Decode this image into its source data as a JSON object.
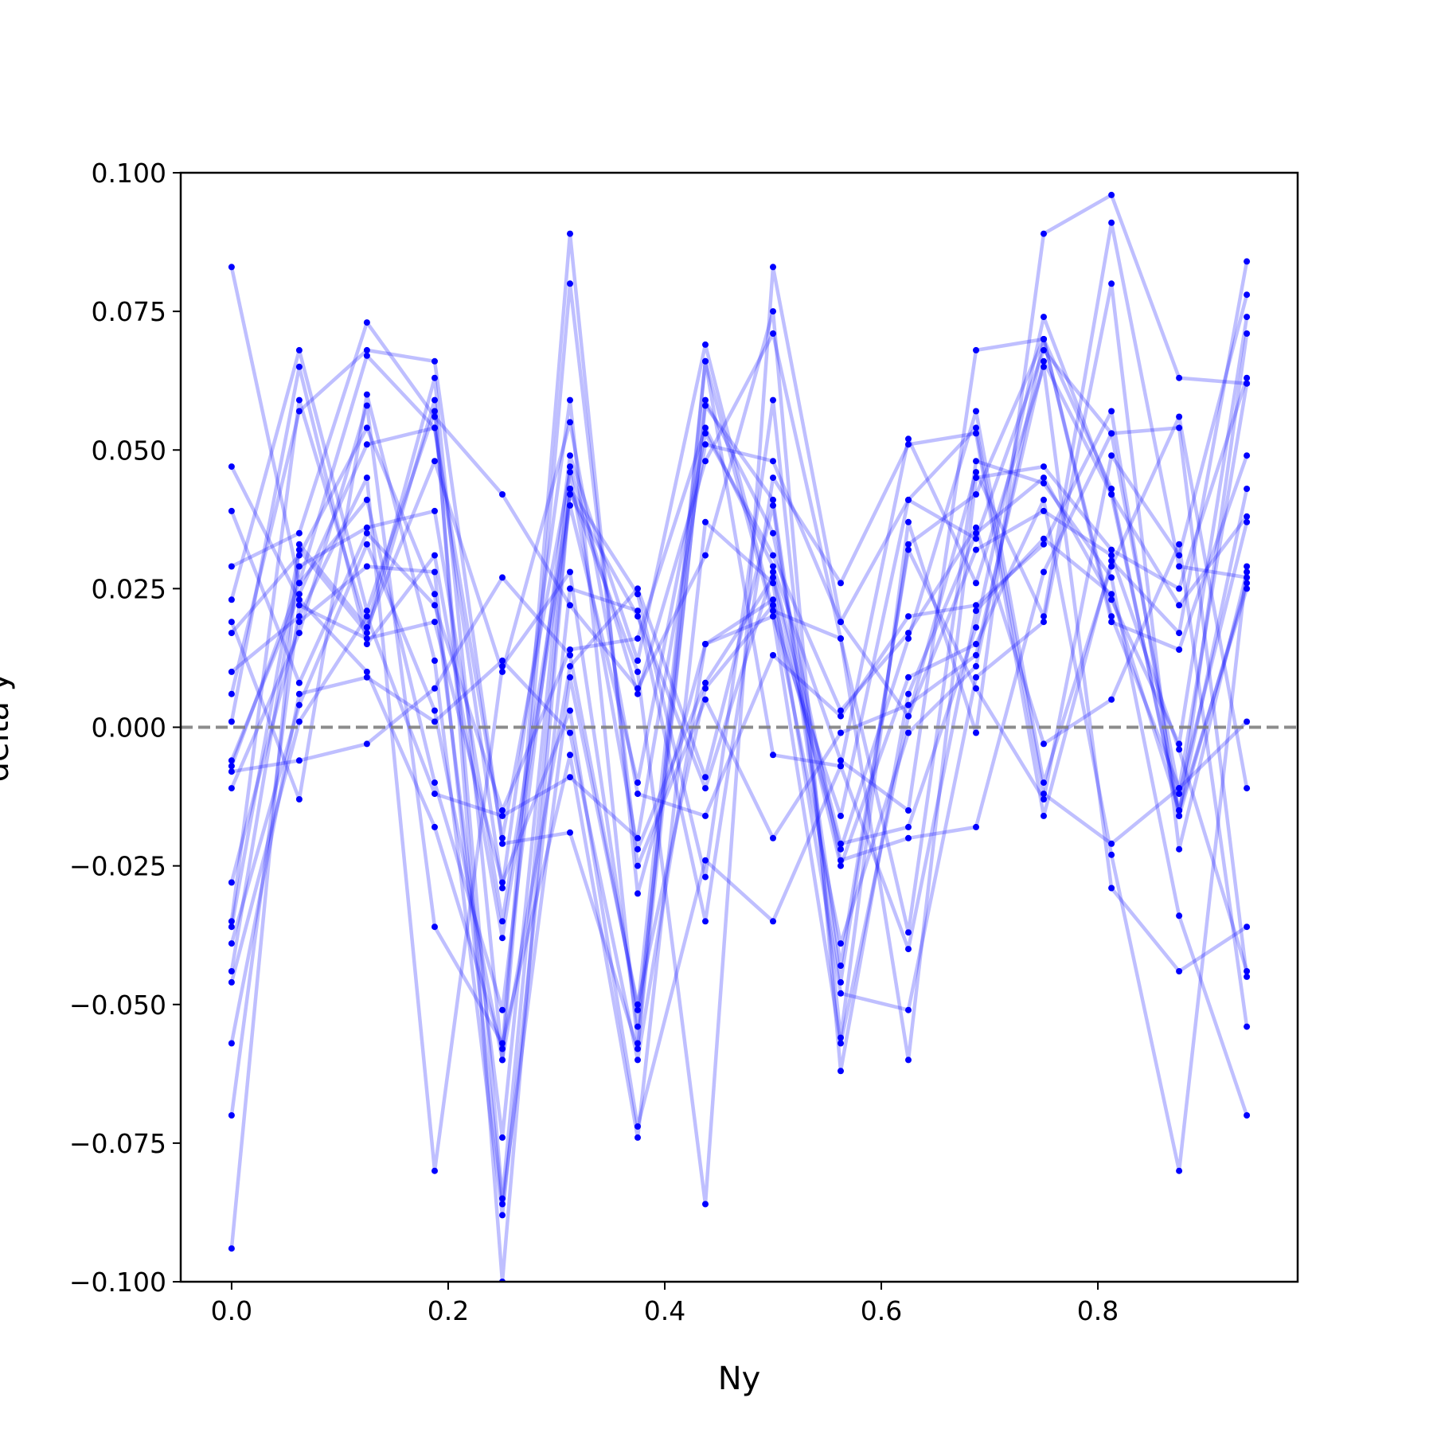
{
  "chart_data": {
    "type": "line",
    "xlabel": "Ny",
    "ylabel": "delta y",
    "xlim": [
      -0.047,
      0.9845
    ],
    "ylim": [
      -0.1,
      0.1
    ],
    "xticks": [
      0.0,
      0.2,
      0.4,
      0.6,
      0.8
    ],
    "xtick_labels": [
      "0.0",
      "0.2",
      "0.4",
      "0.6",
      "0.8"
    ],
    "yticks": [
      -0.1,
      -0.075,
      -0.05,
      -0.025,
      0.0,
      0.025,
      0.05,
      0.075,
      0.1
    ],
    "ytick_labels": [
      "−0.100",
      "−0.075",
      "−0.050",
      "−0.025",
      "0.000",
      "0.025",
      "0.050",
      "0.075",
      "0.100"
    ],
    "reference_line": {
      "y": 0.0,
      "style": "dashed",
      "color": "#808080"
    },
    "series_color": "#0000ff",
    "series_line_alpha": 0.25,
    "x": [
      0.0,
      0.0625,
      0.125,
      0.1875,
      0.25,
      0.3125,
      0.375,
      0.4375,
      0.5,
      0.5625,
      0.625,
      0.6875,
      0.75,
      0.8125,
      0.875,
      0.9375
    ],
    "series": [
      {
        "values": [
          0.083,
          0.026,
          0.067,
          0.054,
          -0.029,
          0.059,
          -0.057,
          0.066,
          0.02,
          -0.016,
          0.041,
          0.034,
          0.068,
          0.053,
          -0.012,
          0.037
        ]
      },
      {
        "values": [
          -0.094,
          0.033,
          0.018,
          0.063,
          -0.06,
          0.011,
          0.025,
          -0.009,
          0.04,
          -0.046,
          0.033,
          0.042,
          0.07,
          0.02,
          -0.011,
          0.062
        ]
      },
      {
        "values": [
          0.047,
          0.023,
          0.01,
          -0.018,
          -0.058,
          0.089,
          -0.03,
          0.015,
          0.023,
          -0.022,
          0.016,
          0.057,
          -0.01,
          0.029,
          0.056,
          -0.011
        ]
      },
      {
        "values": [
          0.039,
          0.008,
          0.035,
          0.022,
          -0.015,
          0.014,
          0.016,
          0.054,
          0.029,
          -0.006,
          -0.015,
          0.068,
          0.07,
          0.043,
          -0.016,
          0.026
        ]
      },
      {
        "values": [
          0.029,
          0.035,
          0.073,
          0.056,
          0.042,
          0.022,
          0.007,
          0.031,
          0.075,
          -0.062,
          0.006,
          0.035,
          0.045,
          0.023,
          -0.003,
          0.074
        ]
      },
      {
        "values": [
          0.023,
          0.068,
          0.021,
          0.057,
          -0.085,
          0.043,
          0.024,
          -0.027,
          0.059,
          -0.056,
          0.037,
          -0.001,
          0.089,
          0.096,
          0.063,
          0.062
        ]
      },
      {
        "values": [
          0.019,
          -0.013,
          0.06,
          0.012,
          -0.088,
          0.025,
          0.021,
          -0.035,
          0.045,
          0.026,
          0.051,
          0.053,
          -0.016,
          0.03,
          0.017,
          0.084
        ]
      },
      {
        "values": [
          0.017,
          0.031,
          0.054,
          0.024,
          -0.074,
          0.047,
          0.006,
          0.048,
          0.071,
          0.016,
          -0.06,
          0.045,
          0.047,
          0.032,
          0.025,
          0.063
        ]
      },
      {
        "values": [
          0.01,
          0.02,
          0.045,
          -0.08,
          0.011,
          0.028,
          -0.054,
          0.058,
          0.041,
          -0.043,
          0.032,
          0.007,
          -0.013,
          0.049,
          0.031,
          0.078
        ]
      },
      {
        "values": [
          0.006,
          0.057,
          0.068,
          0.066,
          -0.021,
          -0.019,
          -0.058,
          0.059,
          0.035,
          -0.024,
          -0.02,
          -0.018,
          0.028,
          0.053,
          0.054,
          -0.045
        ]
      },
      {
        "values": [
          0.001,
          0.065,
          0.015,
          0.031,
          -0.038,
          0.04,
          -0.01,
          0.053,
          0.031,
          0.003,
          0.017,
          0.036,
          -0.003,
          0.005,
          0.033,
          -0.054
        ]
      },
      {
        "values": [
          -0.006,
          0.024,
          0.051,
          0.054,
          -0.02,
          0.046,
          -0.022,
          0.008,
          0.027,
          -0.025,
          0.009,
          0.015,
          0.041,
          -0.023,
          -0.08,
          0.029
        ]
      },
      {
        "values": [
          -0.007,
          0.026,
          0.041,
          -0.01,
          -0.051,
          0.049,
          0.012,
          0.069,
          0.021,
          0.016,
          -0.037,
          0.048,
          0.044,
          0.027,
          -0.034,
          -0.07
        ]
      },
      {
        "values": [
          -0.008,
          -0.006,
          -0.003,
          0.007,
          0.027,
          0.013,
          -0.051,
          0.066,
          -0.005,
          -0.007,
          0.052,
          0.026,
          0.065,
          -0.029,
          -0.044,
          -0.036
        ]
      },
      {
        "values": [
          -0.011,
          0.017,
          0.058,
          -0.036,
          -0.057,
          -0.005,
          -0.074,
          0.037,
          0.026,
          -0.048,
          -0.051,
          0.009,
          0.019,
          0.08,
          -0.022,
          0.028
        ]
      },
      {
        "values": [
          -0.028,
          0.019,
          0.029,
          0.028,
          -0.086,
          0.009,
          -0.05,
          0.007,
          0.022,
          -0.039,
          -0.001,
          0.011,
          0.07,
          0.019,
          0.014,
          0.049
        ]
      },
      {
        "values": [
          -0.035,
          0.059,
          0.018,
          0.048,
          0.01,
          0.055,
          -0.012,
          -0.016,
          0.013,
          0.002,
          0.02,
          0.022,
          0.033,
          0.057,
          -0.016,
          0.071
        ]
      },
      {
        "values": [
          -0.036,
          0.032,
          0.017,
          0.059,
          -0.1,
          0.043,
          0.01,
          -0.086,
          0.083,
          0.019,
          0.002,
          0.046,
          0.02,
          0.091,
          0.029,
          0.027
        ]
      },
      {
        "values": [
          -0.039,
          0.004,
          0.033,
          0.003,
          -0.06,
          0.08,
          -0.025,
          0.005,
          -0.02,
          -0.001,
          0.004,
          0.013,
          0.066,
          0.042,
          -0.015,
          0.043
        ]
      },
      {
        "values": [
          -0.044,
          0.029,
          0.036,
          0.039,
          -0.035,
          0.042,
          0.02,
          -0.011,
          0.028,
          -0.021,
          -0.018,
          0.018,
          0.074,
          0.042,
          0.022,
          0.038
        ]
      },
      {
        "values": [
          -0.046,
          0.001,
          0.02,
          -0.012,
          -0.016,
          -0.009,
          -0.02,
          0.051,
          0.048,
          0.019,
          0.041,
          0.054,
          -0.012,
          -0.021,
          -0.011,
          0.001
        ]
      },
      {
        "values": [
          -0.057,
          0.006,
          0.009,
          0.001,
          0.012,
          -0.001,
          -0.06,
          0.015,
          0.02,
          -0.057,
          0.002,
          0.032,
          0.039,
          0.031,
          -0.004,
          -0.044
        ]
      },
      {
        "values": [
          -0.07,
          0.022,
          0.016,
          0.019,
          -0.028,
          0.003,
          -0.072,
          -0.024,
          -0.035,
          -0.007,
          -0.04,
          0.021,
          0.034,
          0.024,
          -0.015,
          0.025
        ]
      }
    ]
  }
}
